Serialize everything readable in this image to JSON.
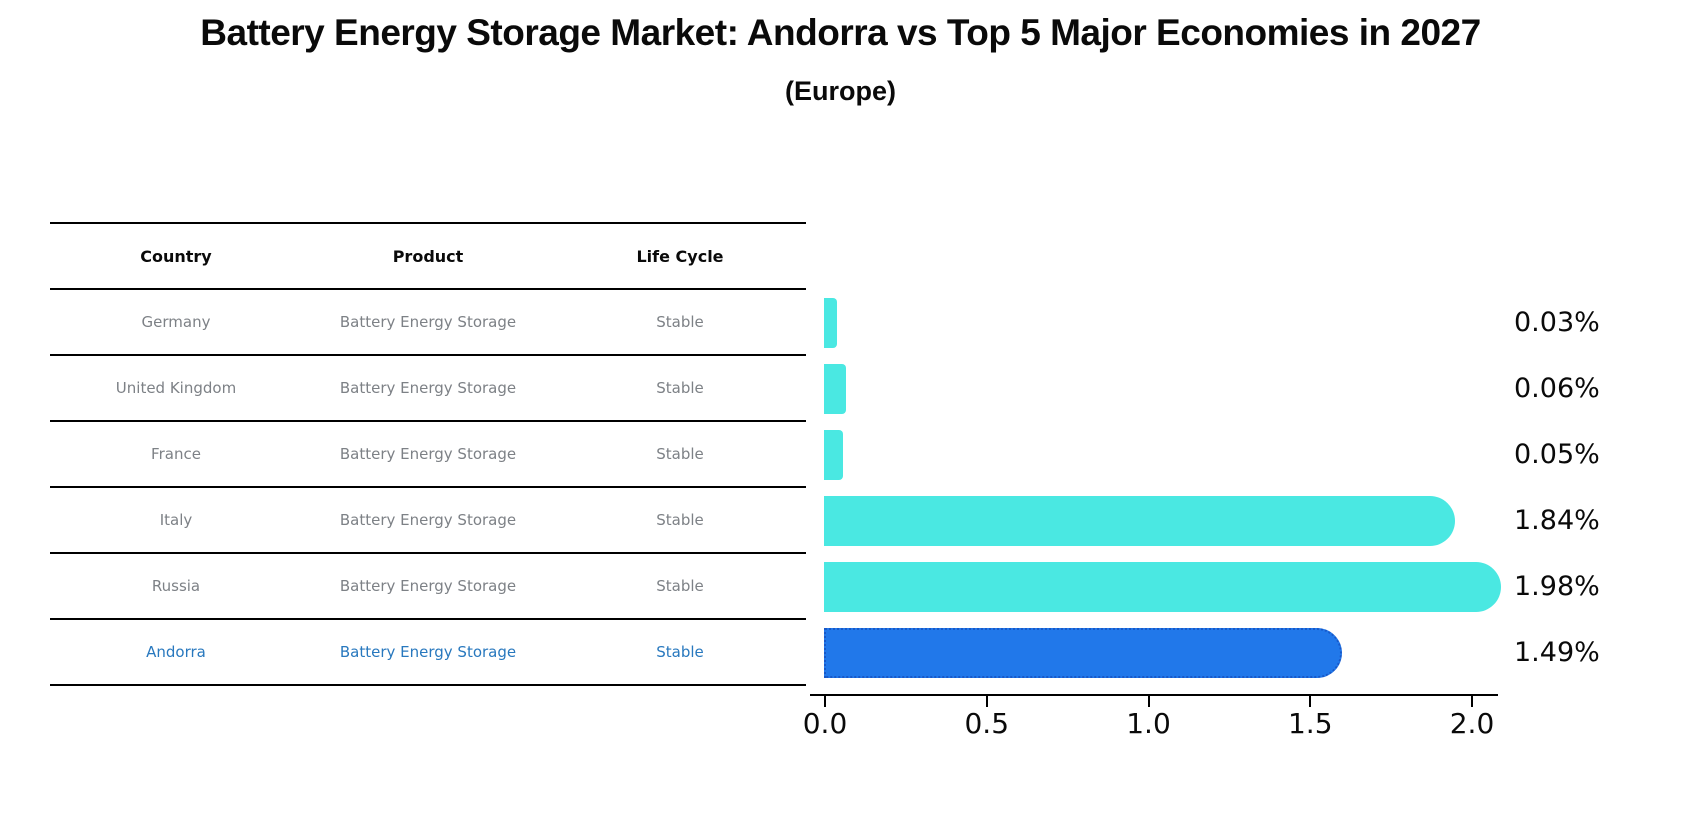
{
  "header": {
    "title": "Battery Energy Storage Market: Andorra vs Top 5 Major Economies in 2027",
    "subtitle": "(Europe)"
  },
  "table": {
    "columns": [
      "Country",
      "Product",
      "Life Cycle"
    ],
    "rows": [
      {
        "country": "Germany",
        "product": "Battery Energy Storage",
        "life_cycle": "Stable",
        "highlight": false
      },
      {
        "country": "United Kingdom",
        "product": "Battery Energy Storage",
        "life_cycle": "Stable",
        "highlight": false
      },
      {
        "country": "France",
        "product": "Battery Energy Storage",
        "life_cycle": "Stable",
        "highlight": false
      },
      {
        "country": "Italy",
        "product": "Battery Energy Storage",
        "life_cycle": "Stable",
        "highlight": false
      },
      {
        "country": "Russia",
        "product": "Battery Energy Storage",
        "life_cycle": "Stable",
        "highlight": false
      },
      {
        "country": "Andorra",
        "product": "Battery Energy Storage",
        "life_cycle": "Stable",
        "highlight": true
      }
    ]
  },
  "chart_data": {
    "type": "bar",
    "orientation": "horizontal",
    "title": "Battery Energy Storage Market: Andorra vs Top 5 Major Economies in 2027",
    "subtitle": "(Europe)",
    "categories": [
      "Germany",
      "United Kingdom",
      "France",
      "Italy",
      "Russia",
      "Andorra"
    ],
    "values": [
      0.03,
      0.06,
      0.05,
      1.84,
      1.98,
      1.49
    ],
    "value_labels": [
      "0.03%",
      "0.06%",
      "0.05%",
      "1.84%",
      "1.98%",
      "1.49%"
    ],
    "x_ticks": [
      "0.0",
      "0.5",
      "1.0",
      "1.5",
      "2.0"
    ],
    "x_tick_values": [
      0.0,
      0.5,
      1.0,
      1.5,
      2.0
    ],
    "xlim": [
      0,
      2.1
    ],
    "grid": false,
    "legend": false,
    "highlight_category": "Andorra",
    "colors": {
      "bar": "#4ae8e2",
      "highlight_bar": "#2178ea",
      "highlight_border": "#1858c8",
      "highlight_text": "#2878be",
      "row_text": "#7d8186",
      "axis": "#000000"
    }
  }
}
